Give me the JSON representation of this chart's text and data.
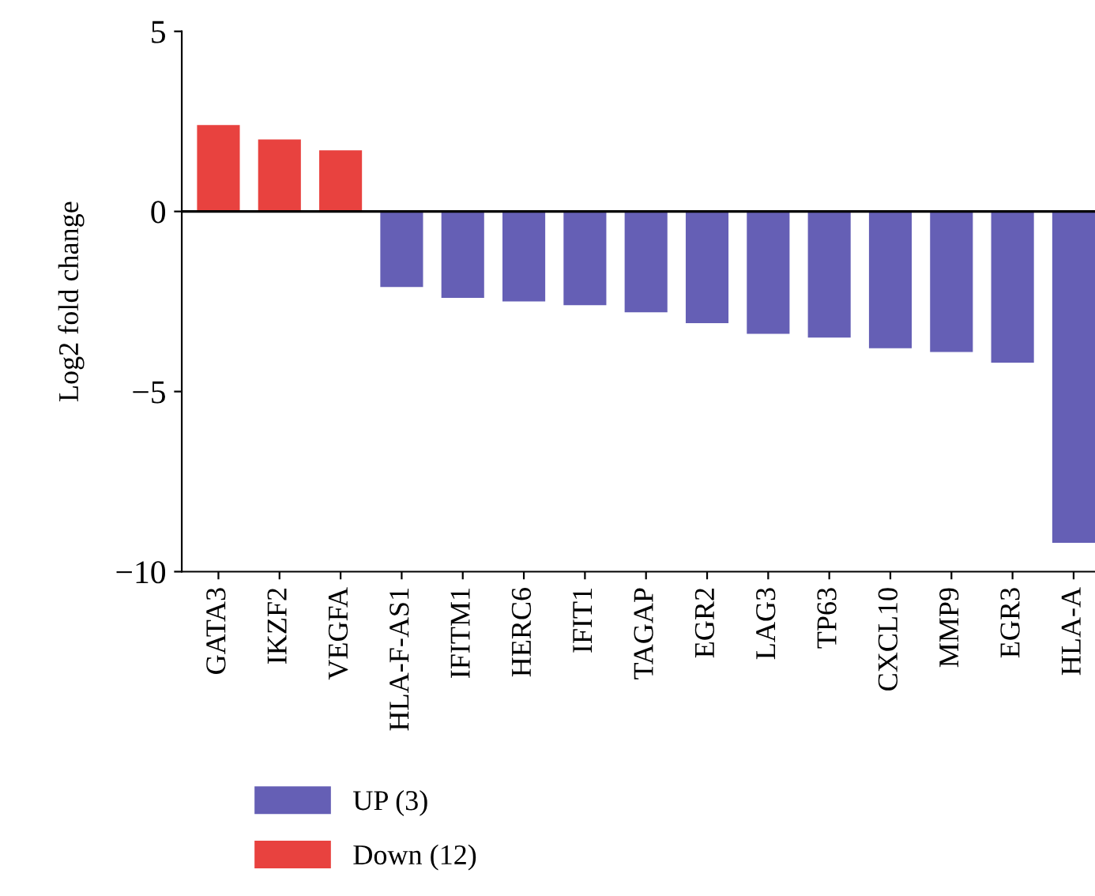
{
  "chart_data": {
    "type": "bar",
    "ylabel": "Log2 fold change",
    "categories": [
      "GATA3",
      "IKZF2",
      "VEGFA",
      "HLA-F-AS1",
      "IFITM1",
      "HERC6",
      "IFIT1",
      "TAGAP",
      "EGR2",
      "LAG3",
      "TP63",
      "CXCL10",
      "MMP9",
      "EGR3",
      "HLA-A"
    ],
    "series": [
      {
        "name": "UP (3)",
        "color": "#655fb5",
        "values": [
          null,
          null,
          null,
          -2.1,
          -2.4,
          -2.5,
          -2.6,
          -2.8,
          -3.1,
          -3.4,
          -3.5,
          -3.8,
          -3.9,
          -4.2,
          -9.2
        ]
      },
      {
        "name": "Down (12)",
        "color": "#e8423f",
        "values": [
          2.4,
          2.0,
          1.7,
          null,
          null,
          null,
          null,
          null,
          null,
          null,
          null,
          null,
          null,
          null,
          null
        ]
      }
    ],
    "ylim": [
      -10,
      5
    ],
    "yticks": [
      {
        "value": -10,
        "label": "−10"
      },
      {
        "value": -5,
        "label": "−5"
      },
      0,
      5
    ],
    "ref_lines": [
      {
        "axis": "y",
        "value": 0,
        "color": "#000000"
      }
    ],
    "grid": false,
    "legend": "bottom left"
  }
}
